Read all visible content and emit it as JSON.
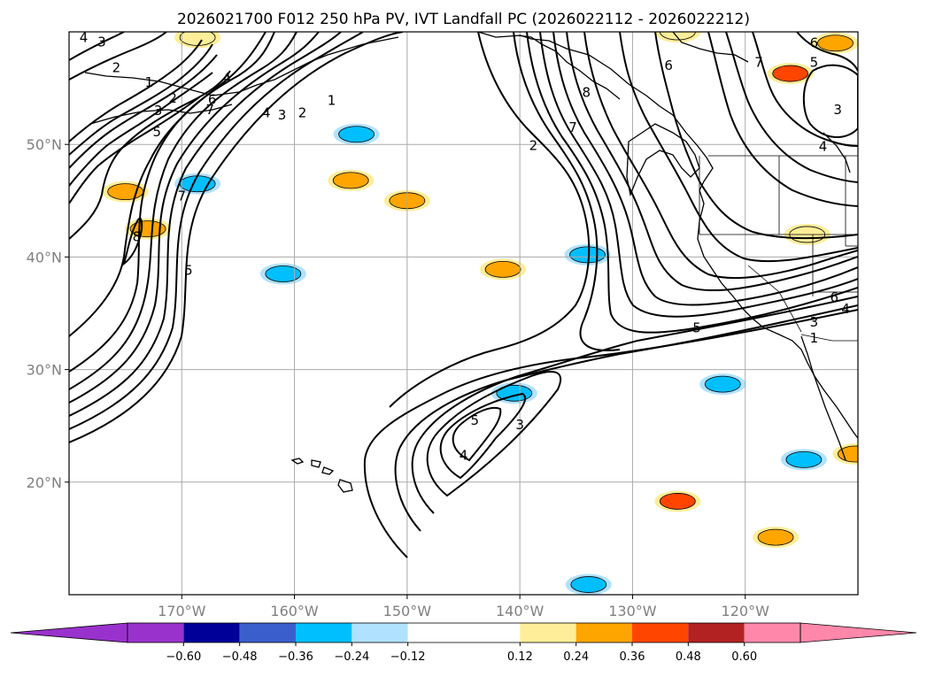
{
  "chart_data": {
    "type": "heatmap",
    "title": "2026021700 F012 250 hPa PV, IVT Landfall PC (2026022112 - 2026022212)",
    "xlim": [
      -180,
      -110
    ],
    "ylim": [
      10,
      60
    ],
    "x_ticks": [
      {
        "lon": -170,
        "label": "170°W"
      },
      {
        "lon": -160,
        "label": "160°W"
      },
      {
        "lon": -150,
        "label": "150°W"
      },
      {
        "lon": -140,
        "label": "140°W"
      },
      {
        "lon": -130,
        "label": "130°W"
      },
      {
        "lon": -120,
        "label": "120°W"
      }
    ],
    "y_ticks": [
      {
        "lat": 50,
        "label": "50°N"
      },
      {
        "lat": 40,
        "label": "40°N"
      },
      {
        "lat": 30,
        "label": "30°N"
      },
      {
        "lat": 20,
        "label": "20°N"
      }
    ],
    "grid": true,
    "colorbar": {
      "orientation": "horizontal",
      "extend": "both",
      "boundaries": [
        -0.72,
        -0.6,
        -0.48,
        -0.36,
        -0.24,
        -0.12,
        0.12,
        0.24,
        0.36,
        0.48,
        0.6,
        0.72
      ],
      "tick_values": [
        -0.6,
        -0.48,
        -0.36,
        -0.24,
        -0.12,
        0.12,
        0.24,
        0.36,
        0.48,
        0.6
      ],
      "tick_labels": [
        "−0.60",
        "−0.48",
        "−0.36",
        "−0.24",
        "−0.12",
        "0.12",
        "0.24",
        "0.36",
        "0.48",
        "0.60"
      ],
      "colors": [
        "#9932cc",
        "#000099",
        "#3a5fcd",
        "#00bfff",
        "#b0e2ff",
        "#ffffff",
        "#ffee99",
        "#ffa500",
        "#ff4500",
        "#b22222",
        "#ff88aa"
      ],
      "under_color": "#9932cc",
      "over_color": "#ff88aa"
    },
    "contour_levels_pvu": [
      1,
      2,
      3,
      4,
      5,
      6,
      7,
      8
    ],
    "contour_labels": [
      {
        "text": "3",
        "lon": -177.1,
        "lat": 59.1
      },
      {
        "text": "4",
        "lon": -178.7,
        "lat": 59.5
      },
      {
        "text": "2",
        "lon": -175.8,
        "lat": 56.8
      },
      {
        "text": "1",
        "lon": -172.9,
        "lat": 55.5
      },
      {
        "text": "2",
        "lon": -170.8,
        "lat": 54.1
      },
      {
        "text": "3",
        "lon": -172.1,
        "lat": 53.0
      },
      {
        "text": "4",
        "lon": -166.0,
        "lat": 55.9
      },
      {
        "text": "5",
        "lon": -172.2,
        "lat": 51.1
      },
      {
        "text": "6",
        "lon": -167.3,
        "lat": 54.0
      },
      {
        "text": "7",
        "lon": -167.5,
        "lat": 53.1
      },
      {
        "text": "4",
        "lon": -162.5,
        "lat": 52.8
      },
      {
        "text": "3",
        "lon": -161.1,
        "lat": 52.6
      },
      {
        "text": "2",
        "lon": -159.3,
        "lat": 52.8
      },
      {
        "text": "1",
        "lon": -156.7,
        "lat": 53.9
      },
      {
        "text": "7",
        "lon": -170.0,
        "lat": 45.4
      },
      {
        "text": "8",
        "lon": -174.0,
        "lat": 41.8
      },
      {
        "text": "5",
        "lon": -169.4,
        "lat": 38.8
      },
      {
        "text": "2",
        "lon": -138.8,
        "lat": 49.9
      },
      {
        "text": "7",
        "lon": -135.3,
        "lat": 51.5
      },
      {
        "text": "8",
        "lon": -134.1,
        "lat": 54.6
      },
      {
        "text": "6",
        "lon": -126.8,
        "lat": 57.0
      },
      {
        "text": "7",
        "lon": -118.8,
        "lat": 57.3
      },
      {
        "text": "6",
        "lon": -113.9,
        "lat": 59.0
      },
      {
        "text": "5",
        "lon": -113.9,
        "lat": 57.3
      },
      {
        "text": "3",
        "lon": -111.8,
        "lat": 53.1
      },
      {
        "text": "4",
        "lon": -113.1,
        "lat": 49.8
      },
      {
        "text": "5",
        "lon": -124.3,
        "lat": 33.7
      },
      {
        "text": "6",
        "lon": -112.1,
        "lat": 36.4
      },
      {
        "text": "4",
        "lon": -111.1,
        "lat": 35.4
      },
      {
        "text": "3",
        "lon": -113.9,
        "lat": 34.2
      },
      {
        "text": "1",
        "lon": -113.9,
        "lat": 32.8
      },
      {
        "text": "5",
        "lon": -144.0,
        "lat": 25.5
      },
      {
        "text": "4",
        "lon": -145.0,
        "lat": 22.4
      },
      {
        "text": "3",
        "lon": -140.0,
        "lat": 25.1
      }
    ],
    "shaded_regions": [
      {
        "lon": -168.6,
        "lat": 46.5,
        "value": -0.3
      },
      {
        "lon": -161.0,
        "lat": 38.5,
        "value": -0.3
      },
      {
        "lon": -134.0,
        "lat": 40.2,
        "value": -0.3
      },
      {
        "lon": -122.0,
        "lat": 28.7,
        "value": -0.3
      },
      {
        "lon": -154.5,
        "lat": 50.9,
        "value": -0.26
      },
      {
        "lon": -140.5,
        "lat": 27.9,
        "value": -0.26
      },
      {
        "lon": -114.8,
        "lat": 22.0,
        "value": -0.26
      },
      {
        "lon": -133.9,
        "lat": 10.9,
        "value": -0.26
      },
      {
        "lon": -175.0,
        "lat": 45.8,
        "value": 0.28
      },
      {
        "lon": -173.0,
        "lat": 42.5,
        "value": 0.28
      },
      {
        "lon": -155.0,
        "lat": 46.8,
        "value": 0.28
      },
      {
        "lon": -150.0,
        "lat": 45.0,
        "value": 0.28
      },
      {
        "lon": -141.5,
        "lat": 38.9,
        "value": 0.28
      },
      {
        "lon": -168.6,
        "lat": 59.5,
        "value": 0.15
      },
      {
        "lon": -126.0,
        "lat": 18.3,
        "value": 0.4
      },
      {
        "lon": -117.3,
        "lat": 15.1,
        "value": 0.28
      },
      {
        "lon": -116.0,
        "lat": 56.3,
        "value": 0.42
      },
      {
        "lon": -112.0,
        "lat": 59.0,
        "value": 0.3
      },
      {
        "lon": -110.2,
        "lat": 22.5,
        "value": 0.28
      },
      {
        "lon": -114.5,
        "lat": 42.0,
        "value": 0.15
      },
      {
        "lon": -126.0,
        "lat": 60.0,
        "value": 0.15
      }
    ]
  }
}
